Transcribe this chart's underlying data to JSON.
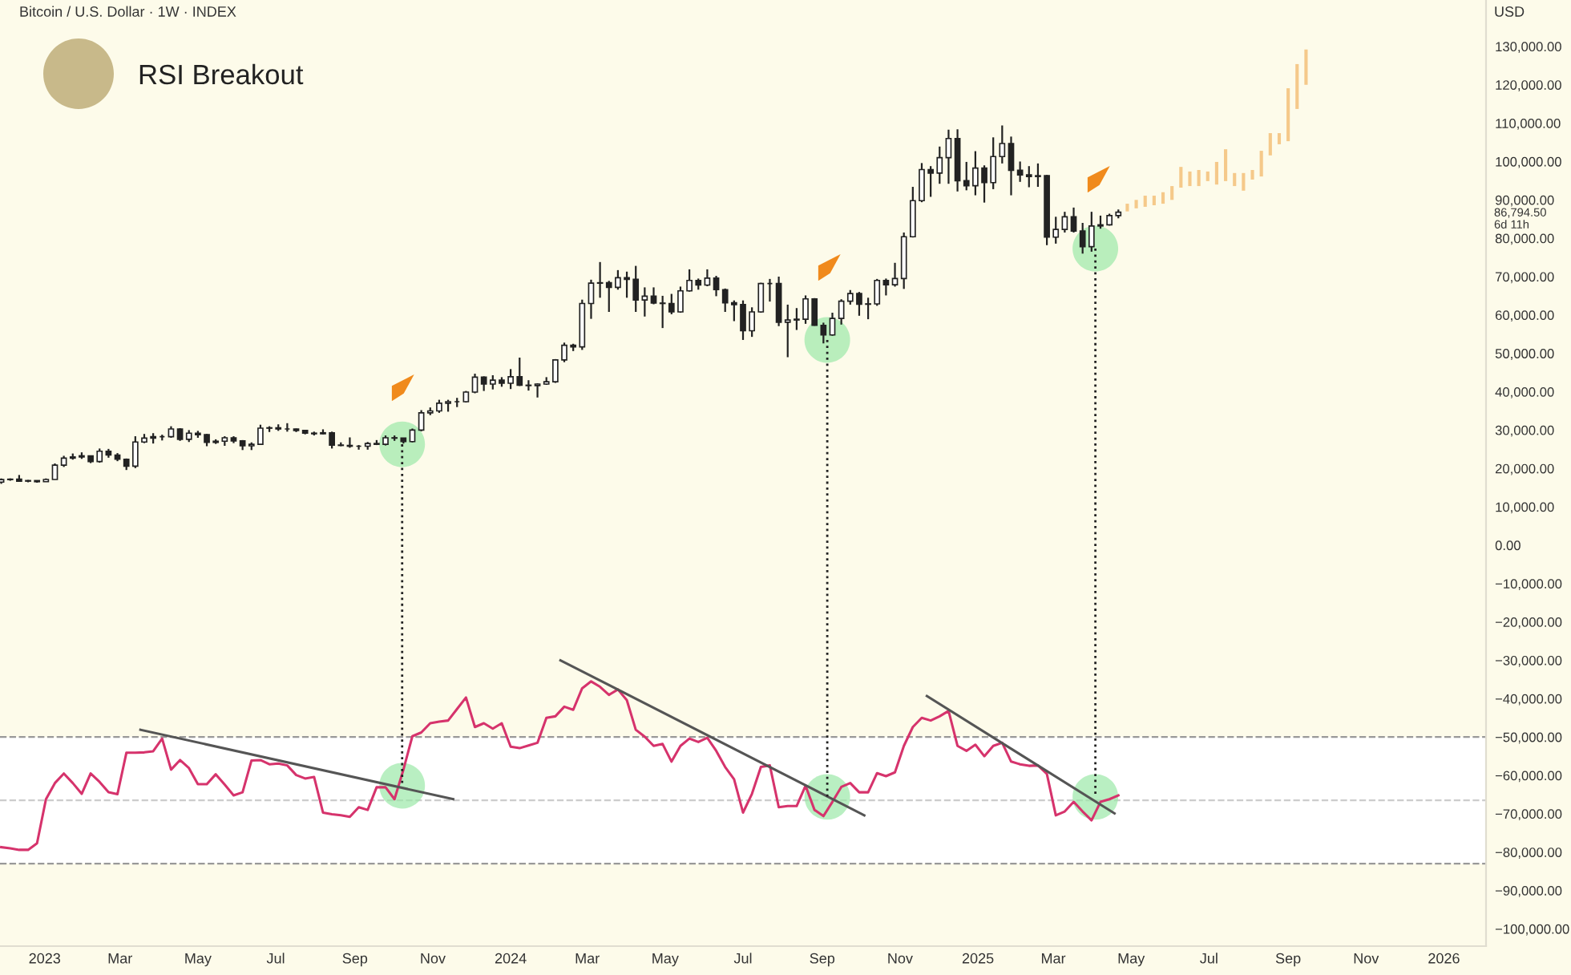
{
  "chart_data": {
    "type": "candlestick",
    "title": "Bitcoin / U.S. Dollar · 1W · INDEX",
    "subtitle": "RSI Breakout",
    "ylabel": "USD",
    "color": "#222222",
    "x": [
      "2022-11-28",
      "2022-12-05",
      "2022-12-12",
      "2022-12-19",
      "2022-12-26",
      "2023-01-02",
      "2023-01-09",
      "2023-01-16",
      "2023-01-23",
      "2023-01-30",
      "2023-02-06",
      "2023-02-13",
      "2023-02-20",
      "2023-02-27",
      "2023-03-06",
      "2023-03-13",
      "2023-03-20",
      "2023-03-27",
      "2023-04-03",
      "2023-04-10",
      "2023-04-17",
      "2023-04-24",
      "2023-05-01",
      "2023-05-08",
      "2023-05-15",
      "2023-05-22",
      "2023-05-29",
      "2023-06-05",
      "2023-06-12",
      "2023-06-19",
      "2023-06-26",
      "2023-07-03",
      "2023-07-10",
      "2023-07-17",
      "2023-07-24",
      "2023-07-31",
      "2023-08-07",
      "2023-08-14",
      "2023-08-21",
      "2023-08-28",
      "2023-09-04",
      "2023-09-11",
      "2023-09-18",
      "2023-09-25",
      "2023-10-02",
      "2023-10-09",
      "2023-10-16",
      "2023-10-23",
      "2023-10-30",
      "2023-11-06",
      "2023-11-13",
      "2023-11-20",
      "2023-11-27",
      "2023-12-04",
      "2023-12-11",
      "2023-12-18",
      "2023-12-25",
      "2024-01-01",
      "2024-01-08",
      "2024-01-15",
      "2024-01-22",
      "2024-01-29",
      "2024-02-05",
      "2024-02-12",
      "2024-02-19",
      "2024-02-26",
      "2024-03-04",
      "2024-03-11",
      "2024-03-18",
      "2024-03-25",
      "2024-04-01",
      "2024-04-08",
      "2024-04-15",
      "2024-04-22",
      "2024-04-29",
      "2024-05-06",
      "2024-05-13",
      "2024-05-20",
      "2024-05-27",
      "2024-06-03",
      "2024-06-10",
      "2024-06-17",
      "2024-06-24",
      "2024-07-01",
      "2024-07-08",
      "2024-07-15",
      "2024-07-22",
      "2024-07-29",
      "2024-08-05",
      "2024-08-12",
      "2024-08-19",
      "2024-08-26",
      "2024-09-02",
      "2024-09-09",
      "2024-09-16",
      "2024-09-23",
      "2024-09-30",
      "2024-10-07",
      "2024-10-14",
      "2024-10-21",
      "2024-10-28",
      "2024-11-04",
      "2024-11-11",
      "2024-11-18",
      "2024-11-25",
      "2024-12-02",
      "2024-12-09",
      "2024-12-16",
      "2024-12-23",
      "2024-12-30",
      "2025-01-06",
      "2025-01-13",
      "2025-01-20",
      "2025-01-27",
      "2025-02-03",
      "2025-02-10",
      "2025-02-17",
      "2025-02-24",
      "2025-03-03",
      "2025-03-10",
      "2025-03-17",
      "2025-03-24",
      "2025-03-31",
      "2025-04-07",
      "2025-04-14",
      "2025-04-21"
    ],
    "ohlc": [
      [
        16450,
        17400,
        16000,
        17100
      ],
      [
        17100,
        17400,
        16800,
        17200
      ],
      [
        17200,
        18300,
        16500,
        16700
      ],
      [
        16700,
        17000,
        16400,
        16840
      ],
      [
        16840,
        16900,
        16300,
        16550
      ],
      [
        16550,
        17400,
        16500,
        17130
      ],
      [
        17130,
        21300,
        17100,
        20880
      ],
      [
        20880,
        23300,
        20400,
        22700
      ],
      [
        22700,
        23900,
        22300,
        23000
      ],
      [
        23000,
        24200,
        22500,
        23300
      ],
      [
        23300,
        23400,
        21400,
        21800
      ],
      [
        21800,
        25200,
        21500,
        24500
      ],
      [
        24500,
        25100,
        22800,
        23500
      ],
      [
        23500,
        24000,
        21900,
        22400
      ],
      [
        22400,
        22600,
        19600,
        20600
      ],
      [
        20600,
        28400,
        20100,
        26900
      ],
      [
        26900,
        29000,
        26600,
        27900
      ],
      [
        27900,
        29200,
        26500,
        28300
      ],
      [
        28300,
        28800,
        27300,
        28300
      ],
      [
        28300,
        31000,
        28000,
        30300
      ],
      [
        30300,
        30500,
        27200,
        27600
      ],
      [
        27600,
        30000,
        26900,
        29200
      ],
      [
        29200,
        29800,
        28000,
        28800
      ],
      [
        28800,
        29000,
        25800,
        26800
      ],
      [
        26800,
        27600,
        26400,
        27100
      ],
      [
        27100,
        28400,
        25900,
        28000
      ],
      [
        28000,
        28400,
        26600,
        27200
      ],
      [
        27200,
        27400,
        24800,
        25900
      ],
      [
        25900,
        26800,
        24800,
        26300
      ],
      [
        26300,
        31400,
        26200,
        30500
      ],
      [
        30500,
        31000,
        29500,
        30600
      ],
      [
        30600,
        31500,
        29800,
        30300
      ],
      [
        30300,
        31800,
        29600,
        30300
      ],
      [
        30300,
        30400,
        29500,
        29900
      ],
      [
        29900,
        30000,
        28900,
        29200
      ],
      [
        29200,
        29600,
        28600,
        29050
      ],
      [
        29050,
        30200,
        28900,
        29300
      ],
      [
        29300,
        29600,
        25200,
        26100
      ],
      [
        26100,
        26800,
        25800,
        26000
      ],
      [
        26000,
        28100,
        25400,
        25800
      ],
      [
        25800,
        26100,
        24900,
        25800
      ],
      [
        25800,
        26900,
        24900,
        26500
      ],
      [
        26500,
        27400,
        26100,
        26300
      ],
      [
        26300,
        28600,
        26000,
        28000
      ],
      [
        28000,
        28600,
        27200,
        27900
      ],
      [
        27900,
        28000,
        26500,
        27000
      ],
      [
        27000,
        30400,
        26800,
        30000
      ],
      [
        30000,
        35200,
        29700,
        34500
      ],
      [
        34500,
        35900,
        33900,
        35000
      ],
      [
        35000,
        37900,
        34500,
        37000
      ],
      [
        37000,
        37900,
        34800,
        37400
      ],
      [
        37400,
        38400,
        36000,
        37400
      ],
      [
        37400,
        40200,
        37200,
        39900
      ],
      [
        39900,
        44700,
        39600,
        43800
      ],
      [
        43800,
        44000,
        40200,
        42000
      ],
      [
        42000,
        44300,
        40600,
        43000
      ],
      [
        43000,
        43800,
        41300,
        42200
      ],
      [
        42200,
        45900,
        40700,
        43900
      ],
      [
        43900,
        48900,
        41500,
        41700
      ],
      [
        41700,
        43000,
        40300,
        41600
      ],
      [
        41600,
        42200,
        38500,
        42000
      ],
      [
        42000,
        43800,
        41800,
        42600
      ],
      [
        42600,
        48500,
        42300,
        48300
      ],
      [
        48300,
        52800,
        47700,
        52100
      ],
      [
        52100,
        52500,
        50600,
        51700
      ],
      [
        51700,
        64000,
        50900,
        63000
      ],
      [
        63000,
        69200,
        59000,
        68300
      ],
      [
        68300,
        73800,
        64500,
        68400
      ],
      [
        68400,
        68900,
        60800,
        67200
      ],
      [
        67200,
        71700,
        66600,
        69700
      ],
      [
        69700,
        71300,
        64500,
        69300
      ],
      [
        69300,
        72800,
        60800,
        63900
      ],
      [
        63900,
        67200,
        59600,
        64900
      ],
      [
        64900,
        67200,
        62800,
        63100
      ],
      [
        63100,
        65000,
        56600,
        63000
      ],
      [
        63000,
        65500,
        60200,
        60800
      ],
      [
        60800,
        67400,
        60600,
        66300
      ],
      [
        66300,
        71900,
        66100,
        69000
      ],
      [
        69000,
        69500,
        66600,
        67800
      ],
      [
        67800,
        71900,
        67500,
        69600
      ],
      [
        69600,
        70200,
        64900,
        66600
      ],
      [
        66600,
        66900,
        60800,
        63200
      ],
      [
        63200,
        63800,
        58400,
        62700
      ],
      [
        62700,
        63800,
        53500,
        55900
      ],
      [
        55900,
        62000,
        54300,
        60800
      ],
      [
        60800,
        68400,
        60600,
        68200
      ],
      [
        68200,
        69400,
        63500,
        68200
      ],
      [
        68200,
        70000,
        57100,
        58100
      ],
      [
        58100,
        62700,
        49000,
        58700
      ],
      [
        58700,
        61800,
        56100,
        58900
      ],
      [
        58900,
        65100,
        57700,
        64200
      ],
      [
        64200,
        64400,
        57200,
        57300
      ],
      [
        57300,
        58000,
        52600,
        54800
      ],
      [
        54800,
        60600,
        54600,
        59100
      ],
      [
        59100,
        64100,
        57500,
        63600
      ],
      [
        63600,
        66500,
        62700,
        65600
      ],
      [
        65600,
        66000,
        59800,
        62800
      ],
      [
        62800,
        64500,
        58900,
        62900
      ],
      [
        62900,
        69400,
        62400,
        69000
      ],
      [
        69000,
        69500,
        65100,
        67900
      ],
      [
        67900,
        73600,
        67400,
        69500
      ],
      [
        69500,
        81500,
        66800,
        80400
      ],
      [
        80400,
        93400,
        80200,
        89800
      ],
      [
        89800,
        99600,
        89400,
        97900
      ],
      [
        97900,
        98800,
        90800,
        97000
      ],
      [
        97000,
        103900,
        94200,
        101000
      ],
      [
        101000,
        108300,
        94200,
        106000
      ],
      [
        106000,
        108400,
        92200,
        95000
      ],
      [
        95000,
        99900,
        92500,
        93700
      ],
      [
        93700,
        102700,
        91200,
        98300
      ],
      [
        98300,
        99000,
        89300,
        94500
      ],
      [
        94500,
        106300,
        92800,
        101300
      ],
      [
        101300,
        109400,
        99500,
        104700
      ],
      [
        104700,
        106500,
        91200,
        97700
      ],
      [
        97700,
        100000,
        94700,
        96500
      ],
      [
        96500,
        98800,
        93300,
        96100
      ],
      [
        96100,
        99500,
        93400,
        96300
      ],
      [
        96300,
        96500,
        78200,
        80300
      ],
      [
        80300,
        85600,
        78600,
        82300
      ],
      [
        82300,
        86900,
        81500,
        85600
      ],
      [
        85600,
        88000,
        81500,
        81900
      ],
      [
        81900,
        84000,
        76000,
        77800
      ],
      [
        77800,
        86900,
        76500,
        83200
      ],
      [
        83200,
        85900,
        82500,
        83500
      ],
      [
        83500,
        86400,
        83300,
        85900
      ],
      [
        85900,
        87500,
        85200,
        86794.5
      ]
    ],
    "series": [
      {
        "type": "bar",
        "color": "#f5c98a",
        "x": [
          "2025-04-28",
          "2025-05-05",
          "2025-05-12",
          "2025-05-19",
          "2025-05-26",
          "2025-06-02",
          "2025-06-09",
          "2025-06-16",
          "2025-06-23",
          "2025-06-30",
          "2025-07-07",
          "2025-07-14",
          "2025-07-21",
          "2025-07-28",
          "2025-08-04",
          "2025-08-11",
          "2025-08-18",
          "2025-08-25",
          "2025-09-01",
          "2025-09-08",
          "2025-09-15"
        ],
        "base": [
          87000,
          87800,
          88200,
          88600,
          89000,
          90000,
          93200,
          93600,
          93600,
          94900,
          94000,
          94900,
          93600,
          92400,
          95300,
          96100,
          101600,
          104500,
          105300,
          113700,
          120000
        ],
        "values": [
          2000,
          2200,
          2900,
          2500,
          3000,
          3600,
          5400,
          3800,
          4200,
          2500,
          5900,
          8300,
          3400,
          4600,
          2500,
          6700,
          5800,
          2900,
          13800,
          11700,
          9200
        ]
      },
      {
        "type": "line",
        "color": "#d6336c",
        "values": [
          -78700,
          -79000,
          -79400,
          -79400,
          -77700,
          -66200,
          -62000,
          -59500,
          -62000,
          -64800,
          -59500,
          -61700,
          -64400,
          -64900,
          -54100,
          -54100,
          -54000,
          -53700,
          -50400,
          -58500,
          -56000,
          -58100,
          -62300,
          -62300,
          -59700,
          -62400,
          -65200,
          -64400,
          -56100,
          -56000,
          -57100,
          -56900,
          -57400,
          -59900,
          -60800,
          -60400,
          -69700,
          -70100,
          -70400,
          -70800,
          -68300,
          -69000,
          -63100,
          -63100,
          -66200,
          -58500,
          -49800,
          -48800,
          -46400,
          -46000,
          -45700,
          -42700,
          -39700,
          -47400,
          -46400,
          -47800,
          -46400,
          -52500,
          -52900,
          -52200,
          -51500,
          -45000,
          -44600,
          -42100,
          -42900,
          -37300,
          -35500,
          -36900,
          -39000,
          -37600,
          -40400,
          -48100,
          -49900,
          -52300,
          -51800,
          -56400,
          -52300,
          -50400,
          -51300,
          -50200,
          -53600,
          -57800,
          -61000,
          -69700,
          -64800,
          -57800,
          -57400,
          -68300,
          -68000,
          -68000,
          -62700,
          -69000,
          -70600,
          -66900,
          -63000,
          -62000,
          -64400,
          -64400,
          -59400,
          -60200,
          -59200,
          -52300,
          -47400,
          -45000,
          -45700,
          -44600,
          -43200,
          -52300,
          -53600,
          -52000,
          -55000,
          -52300,
          -51500,
          -56400,
          -57100,
          -57500,
          -57400,
          -59600,
          -70400,
          -69400,
          -66900,
          -69400,
          -71700,
          -66900,
          -66200,
          -65200
        ]
      },
      {
        "type": "line",
        "color": "#555555",
        "x": [
          "2023-03-17",
          "2023-11-17"
        ],
        "values": [
          -48100,
          -66200
        ]
      },
      {
        "type": "line",
        "color": "#555555",
        "x": [
          "2024-02-09",
          "2024-10-04"
        ],
        "values": [
          -30000,
          -70400
        ]
      },
      {
        "type": "line",
        "color": "#555555",
        "x": [
          "2024-11-22",
          "2025-04-18"
        ],
        "values": [
          -39300,
          -69900
        ]
      },
      {
        "type": "line",
        "color": "#222222",
        "line_style": "dotted",
        "x": [
          "2023-10-08",
          "2023-10-08"
        ],
        "values": [
          26300,
          -62700
        ]
      },
      {
        "type": "line",
        "color": "#222222",
        "line_style": "dotted",
        "x": [
          "2024-09-05",
          "2024-09-05"
        ],
        "values": [
          53500,
          -65600
        ]
      },
      {
        "type": "line",
        "color": "#222222",
        "line_style": "dotted",
        "x": [
          "2025-04-03",
          "2025-04-03"
        ],
        "values": [
          77300,
          -65600
        ]
      },
      {
        "type": "scatter",
        "color": "#9be8a8",
        "marker": "circle",
        "x": [
          "2023-10-08",
          "2024-09-05",
          "2025-04-03",
          "2023-10-08",
          "2024-09-05",
          "2025-04-03"
        ],
        "values": [
          26300,
          53500,
          77300,
          -62700,
          -65600,
          -65600
        ]
      }
    ],
    "bands": [
      {
        "axis": "y",
        "from": -83000,
        "to": -50000,
        "color": "#ffffff"
      }
    ],
    "ref_lines": [
      {
        "axis": "y",
        "value": -50000,
        "color": "#999999",
        "line_style": "dashed"
      },
      {
        "axis": "y",
        "value": -66500,
        "color": "#cccccc",
        "line_style": "dashed"
      },
      {
        "axis": "y",
        "value": -83000,
        "color": "#999999",
        "line_style": "dashed"
      }
    ],
    "annotations": [
      "86,794.50",
      "6d 11h"
    ],
    "xlim": [
      "2022-11-27",
      "2026-02-03"
    ],
    "xticks": [
      {
        "value": "2023-01-01",
        "label": "2023"
      },
      {
        "value": "2023-03-01",
        "label": "Mar"
      },
      {
        "value": "2023-05-01",
        "label": "May"
      },
      {
        "value": "2023-07-01",
        "label": "Jul"
      },
      {
        "value": "2023-09-01",
        "label": "Sep"
      },
      {
        "value": "2023-11-01",
        "label": "Nov"
      },
      {
        "value": "2024-01-01",
        "label": "2024"
      },
      {
        "value": "2024-03-01",
        "label": "Mar"
      },
      {
        "value": "2024-05-01",
        "label": "May"
      },
      {
        "value": "2024-07-01",
        "label": "Jul"
      },
      {
        "value": "2024-09-01",
        "label": "Sep"
      },
      {
        "value": "2024-11-01",
        "label": "Nov"
      },
      {
        "value": "2025-01-01",
        "label": "2025"
      },
      {
        "value": "2025-03-01",
        "label": "Mar"
      },
      {
        "value": "2025-05-01",
        "label": "May"
      },
      {
        "value": "2025-07-01",
        "label": "Jul"
      },
      {
        "value": "2025-09-01",
        "label": "Sep"
      },
      {
        "value": "2025-11-01",
        "label": "Nov"
      },
      {
        "value": "2026-01-01",
        "label": "2026"
      }
    ],
    "ylim": [
      -104500,
      142100
    ],
    "yticks": [
      {
        "value": -100000,
        "label": "−100,000.00"
      },
      {
        "value": -90000,
        "label": "−90,000.00"
      },
      {
        "value": -80000,
        "label": "−80,000.00"
      },
      {
        "value": -70000,
        "label": "−70,000.00"
      },
      {
        "value": -60000,
        "label": "−60,000.00"
      },
      {
        "value": -50000,
        "label": "−50,000.00"
      },
      {
        "value": -40000,
        "label": "−40,000.00"
      },
      {
        "value": -30000,
        "label": "−30,000.00"
      },
      {
        "value": -20000,
        "label": "−20,000.00"
      },
      {
        "value": -10000,
        "label": "−10,000.00"
      },
      {
        "value": 0,
        "label": "0.00"
      },
      {
        "value": 10000,
        "label": "10,000.00"
      },
      {
        "value": 20000,
        "label": "20,000.00"
      },
      {
        "value": 30000,
        "label": "30,000.00"
      },
      {
        "value": 40000,
        "label": "40,000.00"
      },
      {
        "value": 50000,
        "label": "50,000.00"
      },
      {
        "value": 60000,
        "label": "60,000.00"
      },
      {
        "value": 70000,
        "label": "70,000.00"
      },
      {
        "value": 80000,
        "label": "80,000.00"
      },
      {
        "value": 90000,
        "label": "90,000.00"
      },
      {
        "value": 100000,
        "label": "100,000.00"
      },
      {
        "value": 110000,
        "label": "110,000.00"
      },
      {
        "value": 120000,
        "label": "120,000.00"
      },
      {
        "value": 130000,
        "label": "130,000.00"
      }
    ]
  }
}
